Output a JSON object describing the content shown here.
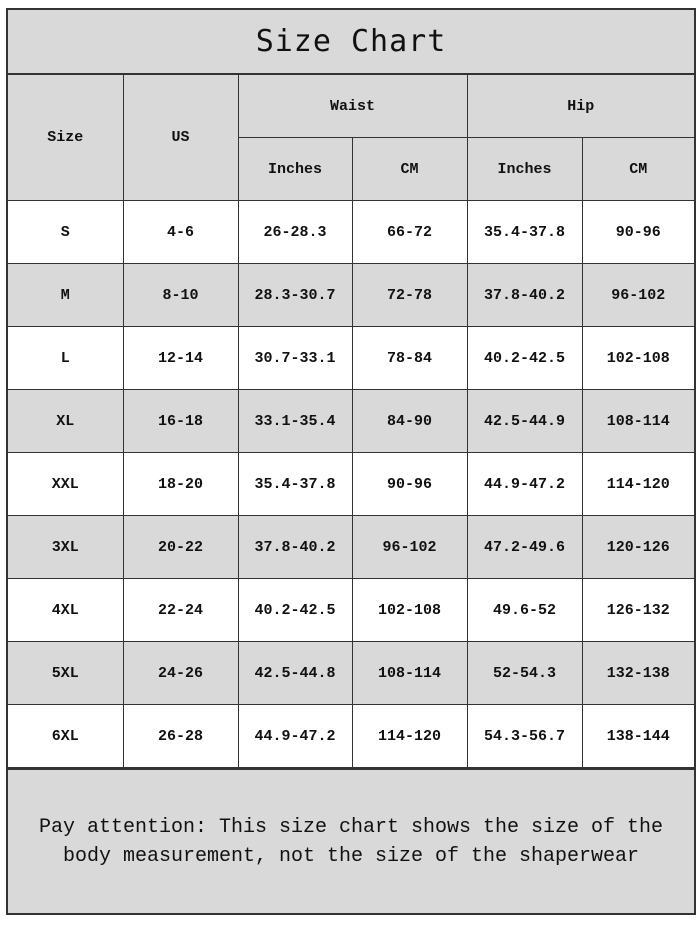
{
  "title": "Size Chart",
  "headers": {
    "size": "Size",
    "us": "US",
    "waist": "Waist",
    "hip": "Hip",
    "waist_inches": "Inches",
    "waist_cm": "CM",
    "hip_inches": "Inches",
    "hip_cm": "CM"
  },
  "rows": [
    [
      "S",
      "4-6",
      "26-28.3",
      "66-72",
      "35.4-37.8",
      "90-96"
    ],
    [
      "M",
      "8-10",
      "28.3-30.7",
      "72-78",
      "37.8-40.2",
      "96-102"
    ],
    [
      "L",
      "12-14",
      "30.7-33.1",
      "78-84",
      "40.2-42.5",
      "102-108"
    ],
    [
      "XL",
      "16-18",
      "33.1-35.4",
      "84-90",
      "42.5-44.9",
      "108-114"
    ],
    [
      "XXL",
      "18-20",
      "35.4-37.8",
      "90-96",
      "44.9-47.2",
      "114-120"
    ],
    [
      "3XL",
      "20-22",
      "37.8-40.2",
      "96-102",
      "47.2-49.6",
      "120-126"
    ],
    [
      "4XL",
      "22-24",
      "40.2-42.5",
      "102-108",
      "49.6-52",
      "126-132"
    ],
    [
      "5XL",
      "24-26",
      "42.5-44.8",
      "108-114",
      "52-54.3",
      "132-138"
    ],
    [
      "6XL",
      "26-28",
      "44.9-47.2",
      "114-120",
      "54.3-56.7",
      "138-144"
    ]
  ],
  "note": "Pay attention: This size chart shows the size of the body measurement, not the size of the shaperwear",
  "colors": {
    "header_bg": "#d9d9d9",
    "row_alt_bg": "#d9d9d9",
    "border": "#333333"
  }
}
